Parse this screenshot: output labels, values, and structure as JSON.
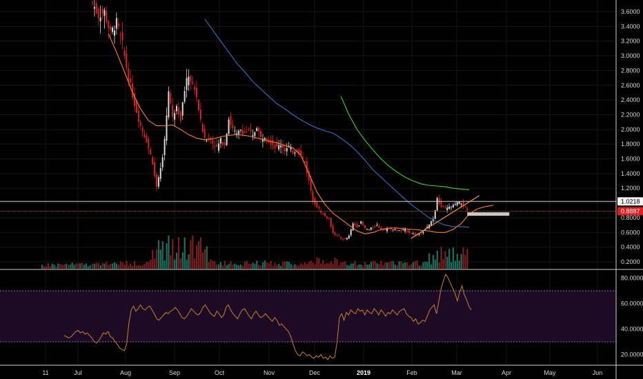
{
  "chart_data": [
    {
      "type": "candlestick",
      "panel": "price",
      "y_axis": {
        "ticks": [
          "0.2000",
          "0.4000",
          "0.6000",
          "0.8000",
          "1.0000",
          "1.2000",
          "1.4000",
          "1.6000",
          "1.8000",
          "2.0000",
          "2.2000",
          "2.4000",
          "2.6000",
          "2.8000",
          "3.0000",
          "3.2000",
          "3.4000",
          "3.6000"
        ],
        "ylim": [
          0.1,
          3.75
        ]
      },
      "x_axis": {
        "ticks": [
          "11",
          "Jul",
          "Aug",
          "Sep",
          "Oct",
          "Nov",
          "Dec",
          "2019",
          "Feb",
          "Mar",
          "Apr",
          "May",
          "Jun"
        ],
        "bold_ticks": [
          "2019"
        ]
      },
      "close_path": [
        [
          0,
          3.72
        ],
        [
          3,
          3.55
        ],
        [
          6,
          3.6
        ],
        [
          9,
          3.3
        ],
        [
          12,
          3.45
        ],
        [
          15,
          3.15
        ],
        [
          18,
          2.7
        ],
        [
          21,
          2.35
        ],
        [
          24,
          2.05
        ],
        [
          27,
          1.85
        ],
        [
          30,
          1.55
        ],
        [
          32,
          1.2
        ],
        [
          34,
          1.45
        ],
        [
          36,
          1.85
        ],
        [
          38,
          2.55
        ],
        [
          40,
          2.15
        ],
        [
          42,
          2.35
        ],
        [
          44,
          2.15
        ],
        [
          46,
          2.55
        ],
        [
          48,
          2.75
        ],
        [
          50,
          2.6
        ],
        [
          52,
          2.45
        ],
        [
          54,
          2.1
        ],
        [
          56,
          1.85
        ],
        [
          58,
          1.9
        ],
        [
          60,
          1.82
        ],
        [
          62,
          1.75
        ],
        [
          64,
          1.85
        ],
        [
          66,
          1.8
        ],
        [
          68,
          2.15
        ],
        [
          70,
          2.0
        ],
        [
          72,
          1.92
        ],
        [
          74,
          2.0
        ],
        [
          76,
          1.95
        ],
        [
          78,
          1.98
        ],
        [
          80,
          1.9
        ],
        [
          82,
          2.05
        ],
        [
          84,
          1.88
        ],
        [
          86,
          1.92
        ],
        [
          88,
          1.85
        ],
        [
          90,
          1.8
        ],
        [
          92,
          1.75
        ],
        [
          94,
          1.8
        ],
        [
          96,
          1.72
        ],
        [
          98,
          1.76
        ],
        [
          100,
          1.7
        ],
        [
          102,
          1.72
        ],
        [
          104,
          1.65
        ],
        [
          106,
          1.55
        ],
        [
          108,
          1.3
        ],
        [
          110,
          1.05
        ],
        [
          112,
          0.95
        ],
        [
          114,
          0.88
        ],
        [
          116,
          0.82
        ],
        [
          118,
          0.78
        ],
        [
          120,
          0.6
        ],
        [
          122,
          0.55
        ],
        [
          124,
          0.52
        ],
        [
          126,
          0.5
        ],
        [
          128,
          0.55
        ],
        [
          130,
          0.72
        ],
        [
          132,
          0.68
        ],
        [
          134,
          0.74
        ],
        [
          136,
          0.65
        ],
        [
          138,
          0.64
        ],
        [
          140,
          0.67
        ],
        [
          142,
          0.7
        ],
        [
          144,
          0.65
        ],
        [
          146,
          0.63
        ],
        [
          148,
          0.66
        ],
        [
          150,
          0.64
        ],
        [
          152,
          0.63
        ],
        [
          154,
          0.62
        ],
        [
          156,
          0.64
        ],
        [
          158,
          0.6
        ],
        [
          160,
          0.58
        ],
        [
          162,
          0.56
        ],
        [
          164,
          0.6
        ],
        [
          166,
          0.64
        ],
        [
          168,
          0.7
        ],
        [
          170,
          0.78
        ],
        [
          172,
          1.05
        ],
        [
          174,
          0.95
        ],
        [
          176,
          0.92
        ],
        [
          178,
          0.94
        ],
        [
          180,
          0.96
        ],
        [
          182,
          1.0
        ],
        [
          184,
          1.0
        ],
        [
          186,
          0.93
        ],
        [
          187,
          0.8887
        ]
      ],
      "moving_averages": [
        {
          "color": "#ff7f2a",
          "from_bar": 8,
          "values_every_4_bars": [
            3.3,
            3.05,
            2.78,
            2.5,
            2.28,
            2.12,
            2.05,
            2.05,
            2.06,
            2.0,
            1.93,
            1.88,
            1.86,
            1.87,
            1.9,
            1.92,
            1.93,
            1.92,
            1.9,
            1.87,
            1.84,
            1.82,
            1.78,
            1.75,
            1.65,
            1.4,
            1.15,
            0.98,
            0.86,
            0.78,
            0.7,
            0.62,
            0.58,
            0.6,
            0.64,
            0.66,
            0.66,
            0.65,
            0.64,
            0.63,
            0.62,
            0.6,
            0.6,
            0.64,
            0.72,
            0.85,
            0.92,
            0.95,
            0.97
          ]
        },
        {
          "color": "#2b76c8",
          "from_bar": 56,
          "values_every_4_bars": [
            3.5,
            3.35,
            3.2,
            3.05,
            2.9,
            2.78,
            2.65,
            2.55,
            2.45,
            2.35,
            2.28,
            2.2,
            2.13,
            2.07,
            2.02,
            1.98,
            1.95,
            1.88,
            1.8,
            1.7,
            1.58,
            1.45,
            1.35,
            1.25,
            1.15,
            1.05,
            0.96,
            0.88,
            0.8,
            0.74,
            0.7,
            0.68,
            0.68,
            0.67
          ]
        },
        {
          "color": "#3ad62a",
          "from_bar": 124,
          "values_every_4_bars": [
            2.45,
            2.2,
            2.0,
            1.85,
            1.72,
            1.6,
            1.5,
            1.42,
            1.35,
            1.3,
            1.26,
            1.24,
            1.23,
            1.22,
            1.2,
            1.19,
            1.18
          ]
        }
      ],
      "price_tags": [
        {
          "label": "1.0218",
          "value": 1.0218,
          "style": "white"
        },
        {
          "label": "0.8887",
          "value": 0.8887,
          "style": "red"
        }
      ],
      "trend_line": {
        "color": "#ff9a3c",
        "start_bar": 159,
        "start": 0.52,
        "end_bar": 193,
        "end": 1.1
      },
      "support_zone": {
        "color": "#c8c8c8",
        "from_bar": 187,
        "to_bar": 208,
        "value": 0.85
      }
    },
    {
      "type": "line",
      "panel": "rsi",
      "y_axis": {
        "ticks": [
          "20.0000",
          "40.0000",
          "60.0000",
          "80.0000"
        ],
        "ylim": [
          10,
          86
        ],
        "band": [
          30,
          70
        ]
      },
      "color": "#c9822c",
      "values": [
        35,
        34,
        33,
        34,
        36,
        38,
        39,
        37,
        38,
        36,
        37,
        35,
        33,
        30,
        29,
        31,
        34,
        37,
        36,
        38,
        34,
        33,
        30,
        28,
        25,
        24,
        23,
        28,
        45,
        55,
        58,
        54,
        56,
        59,
        56,
        55,
        57,
        58,
        55,
        52,
        48,
        47,
        49,
        51,
        53,
        52,
        54,
        55,
        57,
        55,
        52,
        49,
        48,
        50,
        53,
        56,
        54,
        52,
        51,
        53,
        57,
        59,
        56,
        53,
        51,
        50,
        54,
        52,
        49,
        51,
        57,
        59,
        55,
        52,
        50,
        48,
        52,
        55,
        56,
        53,
        50,
        48,
        52,
        54,
        51,
        49,
        50,
        52,
        50,
        48,
        46,
        49,
        47,
        43,
        44,
        42,
        40,
        38,
        34,
        28,
        23,
        20,
        19,
        22,
        21,
        19,
        20,
        18,
        17,
        19,
        18,
        20,
        17,
        18,
        16,
        19,
        17,
        18,
        30,
        49,
        52,
        47,
        53,
        51,
        55,
        53,
        52,
        56,
        54,
        55,
        51,
        55,
        53,
        52,
        56,
        54,
        51,
        55,
        53,
        50,
        53,
        52,
        55,
        53,
        51,
        54,
        55,
        56,
        52,
        50,
        49,
        46,
        48,
        44,
        45,
        47,
        46,
        50,
        55,
        57,
        59,
        52,
        62,
        72,
        78,
        83,
        80,
        76,
        72,
        68,
        62,
        69,
        74,
        67,
        63,
        58,
        55
      ]
    }
  ]
}
